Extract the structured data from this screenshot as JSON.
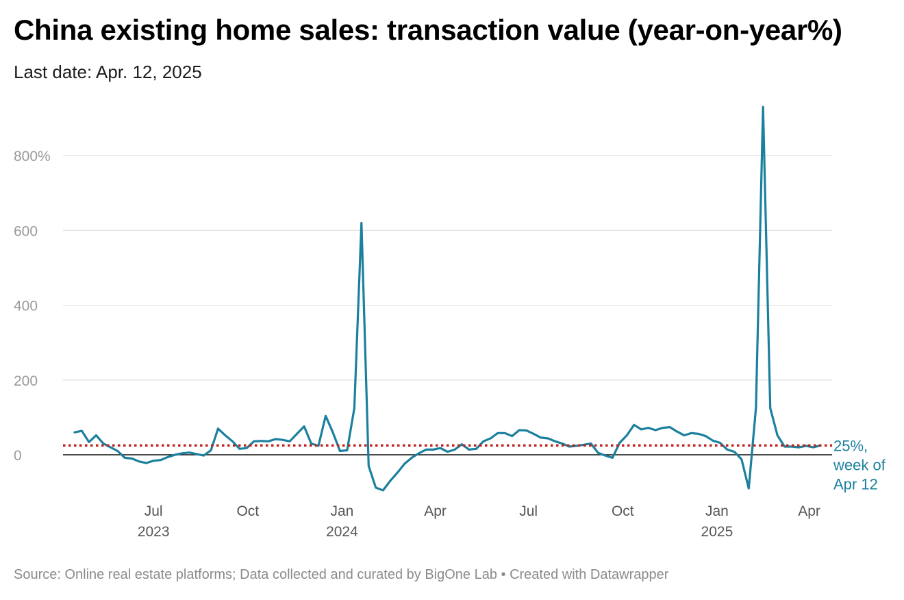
{
  "header": {
    "title": "China existing home sales: transaction value (year-on-year%)",
    "subtitle": "Last date: Apr. 12, 2025"
  },
  "footer": {
    "source": "Source: Online real estate platforms; Data collected and curated by BigOne Lab • Created with Datawrapper"
  },
  "colors": {
    "line": "#1b7f9e",
    "reference": "#c0221b",
    "grid": "#e2e2e2",
    "zero": "#111111"
  },
  "chart_data": {
    "type": "line",
    "x_unit": "week",
    "x_start": "2023-04-15",
    "x_end": "2025-04-12",
    "ylim": [
      -100,
      900
    ],
    "yticks": [
      0,
      200,
      400,
      600,
      800
    ],
    "ytick_labels": [
      "0",
      "200",
      "400",
      "600",
      "800%"
    ],
    "xticks": [
      {
        "date": "2023-07-01",
        "label": "Jul",
        "year": "2023"
      },
      {
        "date": "2023-10-01",
        "label": "Oct",
        "year": ""
      },
      {
        "date": "2024-01-01",
        "label": "Jan",
        "year": "2024"
      },
      {
        "date": "2024-04-01",
        "label": "Apr",
        "year": ""
      },
      {
        "date": "2024-07-01",
        "label": "Jul",
        "year": ""
      },
      {
        "date": "2024-10-01",
        "label": "Oct",
        "year": ""
      },
      {
        "date": "2025-01-01",
        "label": "Jan",
        "year": "2025"
      },
      {
        "date": "2025-04-01",
        "label": "Apr",
        "year": ""
      }
    ],
    "grid": true,
    "reference_line": {
      "value": 25,
      "style": "dotted"
    },
    "annotation": {
      "lines": [
        "25%,",
        "week of",
        "Apr 12"
      ]
    },
    "series": [
      {
        "values": [
          60,
          64,
          34,
          52,
          30,
          20,
          10,
          -8,
          -10,
          -18,
          -22,
          -16,
          -14,
          -6,
          0,
          4,
          6,
          2,
          -2,
          12,
          70,
          52,
          36,
          16,
          18,
          36,
          37,
          36,
          42,
          40,
          36,
          56,
          76,
          30,
          24,
          104,
          60,
          10,
          12,
          125,
          620,
          -30,
          -88,
          -95,
          -70,
          -48,
          -24,
          -8,
          4,
          14,
          14,
          18,
          8,
          14,
          28,
          14,
          16,
          36,
          44,
          58,
          58,
          50,
          66,
          65,
          56,
          46,
          44,
          36,
          30,
          22,
          24,
          27,
          30,
          5,
          -2,
          -8,
          32,
          52,
          80,
          68,
          72,
          66,
          72,
          74,
          62,
          52,
          58,
          56,
          50,
          38,
          32,
          14,
          8,
          -12,
          -90,
          125,
          930,
          125,
          52,
          22,
          22,
          20,
          24,
          20,
          25
        ]
      }
    ]
  }
}
